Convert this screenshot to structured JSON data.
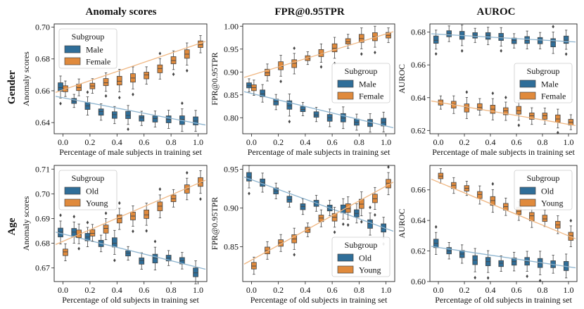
{
  "column_titles": [
    "Anomaly scores",
    "FPR@0.95TPR",
    "AUROC"
  ],
  "row_labels": [
    "Gender",
    "Age"
  ],
  "colors": {
    "blue": "#2f6e99",
    "orange": "#e08a3c",
    "blue_line": "#8db4cf",
    "orange_line": "#f0b782"
  },
  "legend_title": "Subgroup",
  "chart_data": [
    {
      "id": "gender-anomaly",
      "type": "box",
      "title": "Anomaly scores",
      "xlabel": "Percentage of male subjects in training set",
      "ylabel": "Anomaly scores",
      "categories": [
        0.0,
        0.1,
        0.2,
        0.3,
        0.4,
        0.5,
        0.6,
        0.7,
        0.8,
        0.9,
        1.0
      ],
      "xticks": [
        "0.0",
        "0.2",
        "0.4",
        "0.6",
        "0.8",
        "1.0"
      ],
      "ylim": [
        0.633,
        0.702
      ],
      "yticks": [
        0.64,
        0.66,
        0.68,
        0.7
      ],
      "legend": "top-left",
      "series": [
        {
          "name": "Male",
          "color": "blue",
          "trend": [
            0.6565,
            0.6385
          ],
          "medians": [
            0.662,
            0.6535,
            0.6505,
            0.647,
            0.645,
            0.6445,
            0.643,
            0.6425,
            0.642,
            0.642,
            0.641
          ]
        },
        {
          "name": "Female",
          "color": "orange",
          "trend": [
            0.659,
            0.691
          ],
          "medians": [
            0.661,
            0.662,
            0.663,
            0.665,
            0.666,
            0.668,
            0.67,
            0.674,
            0.679,
            0.683,
            0.689
          ]
        }
      ]
    },
    {
      "id": "gender-fpr",
      "type": "box",
      "title": "FPR@0.95TPR",
      "xlabel": "Percentage of male subjects in training set",
      "ylabel": "FPR@0.95TPR",
      "categories": [
        0.0,
        0.1,
        0.2,
        0.3,
        0.4,
        0.5,
        0.6,
        0.7,
        0.8,
        0.9,
        1.0
      ],
      "xticks": [
        "0.0",
        "0.2",
        "0.4",
        "0.6",
        "0.8",
        "1.0"
      ],
      "ylim": [
        0.765,
        1.005
      ],
      "yticks": [
        0.8,
        0.85,
        0.9,
        0.95,
        1.0
      ],
      "legend": "center-right",
      "series": [
        {
          "name": "Male",
          "color": "blue",
          "trend": [
            0.857,
            0.778
          ],
          "medians": [
            0.87,
            0.852,
            0.835,
            0.826,
            0.818,
            0.806,
            0.8,
            0.799,
            0.79,
            0.788,
            0.79
          ]
        },
        {
          "name": "Female",
          "color": "orange",
          "trend": [
            0.888,
            0.988
          ],
          "medians": [
            0.866,
            0.898,
            0.912,
            0.919,
            0.93,
            0.94,
            0.952,
            0.966,
            0.973,
            0.977,
            0.98
          ]
        }
      ]
    },
    {
      "id": "gender-auroc",
      "type": "box",
      "title": "AUROC",
      "xlabel": "Percentage of male subjects in training set",
      "ylabel": "AUROC",
      "categories": [
        0.0,
        0.1,
        0.2,
        0.3,
        0.4,
        0.5,
        0.6,
        0.7,
        0.8,
        0.9,
        1.0
      ],
      "xticks": [
        "0.0",
        "0.2",
        "0.4",
        "0.6",
        "0.8",
        "1.0"
      ],
      "ylim": [
        0.618,
        0.685
      ],
      "yticks": [
        0.62,
        0.64,
        0.66,
        0.68
      ],
      "legend": "center-right",
      "series": [
        {
          "name": "Male",
          "color": "blue",
          "trend": [
            0.679,
            0.674
          ],
          "medians": [
            0.675,
            0.679,
            0.678,
            0.678,
            0.678,
            0.677,
            0.675,
            0.675,
            0.675,
            0.674,
            0.675
          ]
        },
        {
          "name": "Female",
          "color": "orange",
          "trend": [
            0.638,
            0.623
          ],
          "medians": [
            0.637,
            0.636,
            0.634,
            0.634,
            0.633,
            0.632,
            0.632,
            0.629,
            0.629,
            0.627,
            0.625
          ]
        }
      ]
    },
    {
      "id": "age-anomaly",
      "type": "box",
      "title": "Anomaly scores",
      "xlabel": "Percentage of old subjects in training set",
      "ylabel": "Anomaly scores",
      "categories": [
        0.0,
        0.1,
        0.2,
        0.3,
        0.4,
        0.5,
        0.6,
        0.7,
        0.8,
        0.9,
        1.0
      ],
      "xticks": [
        "0.0",
        "0.2",
        "0.4",
        "0.6",
        "0.8",
        "1.0"
      ],
      "ylim": [
        0.6645,
        0.7115
      ],
      "yticks": [
        0.67,
        0.68,
        0.69,
        0.7,
        0.71
      ],
      "legend": "top-left",
      "series": [
        {
          "name": "Old",
          "color": "blue",
          "trend": [
            0.6845,
            0.6695
          ],
          "medians": [
            0.6845,
            0.6845,
            0.6825,
            0.68,
            0.68,
            0.676,
            0.673,
            0.674,
            0.674,
            0.673,
            0.668
          ]
        },
        {
          "name": "Young",
          "color": "orange",
          "trend": [
            0.6795,
            0.7055
          ],
          "medians": [
            0.6765,
            0.6835,
            0.684,
            0.686,
            0.69,
            0.691,
            0.6915,
            0.695,
            0.698,
            0.702,
            0.7045
          ]
        }
      ]
    },
    {
      "id": "age-fpr",
      "type": "box",
      "title": "FPR@0.95TPR",
      "xlabel": "Percentage of old subjects in training set",
      "ylabel": "FPR@0.95TPR",
      "categories": [
        0.0,
        0.1,
        0.2,
        0.3,
        0.4,
        0.5,
        0.6,
        0.7,
        0.8,
        0.9,
        1.0
      ],
      "xticks": [
        "0.0",
        "0.2",
        "0.4",
        "0.6",
        "0.8",
        "1.0"
      ],
      "ylim": [
        0.805,
        0.955
      ],
      "yticks": [
        0.85,
        0.9,
        0.95
      ],
      "legend": "bottom-right",
      "series": [
        {
          "name": "Old",
          "color": "blue",
          "trend": [
            0.94,
            0.87
          ],
          "medians": [
            0.94,
            0.933,
            0.922,
            0.911,
            0.902,
            0.906,
            0.9,
            0.898,
            0.893,
            0.88,
            0.874
          ]
        },
        {
          "name": "Young",
          "color": "orange",
          "trend": [
            0.8275,
            0.9335
          ],
          "medians": [
            0.825,
            0.845,
            0.855,
            0.86,
            0.872,
            0.887,
            0.888,
            0.899,
            0.905,
            0.912,
            0.932
          ]
        }
      ]
    },
    {
      "id": "age-auroc",
      "type": "box",
      "title": "AUROC",
      "xlabel": "Percentage of old subjects in training set",
      "ylabel": "AUROC",
      "categories": [
        0.0,
        0.1,
        0.2,
        0.3,
        0.4,
        0.5,
        0.6,
        0.7,
        0.8,
        0.9,
        1.0
      ],
      "xticks": [
        "0.0",
        "0.2",
        "0.4",
        "0.6",
        "0.8",
        "1.0"
      ],
      "ylim": [
        0.6,
        0.676
      ],
      "yticks": [
        0.6,
        0.62,
        0.64,
        0.66
      ],
      "legend": "top-right",
      "series": [
        {
          "name": "Old",
          "color": "blue",
          "trend": [
            0.623,
            0.609
          ],
          "medians": [
            0.625,
            0.62,
            0.618,
            0.614,
            0.613,
            0.612,
            0.613,
            0.613,
            0.612,
            0.611,
            0.61
          ]
        },
        {
          "name": "Young",
          "color": "orange",
          "trend": [
            0.667,
            0.628
          ],
          "medians": [
            0.669,
            0.663,
            0.661,
            0.657,
            0.653,
            0.649,
            0.646,
            0.643,
            0.641,
            0.637,
            0.63
          ]
        }
      ]
    }
  ]
}
